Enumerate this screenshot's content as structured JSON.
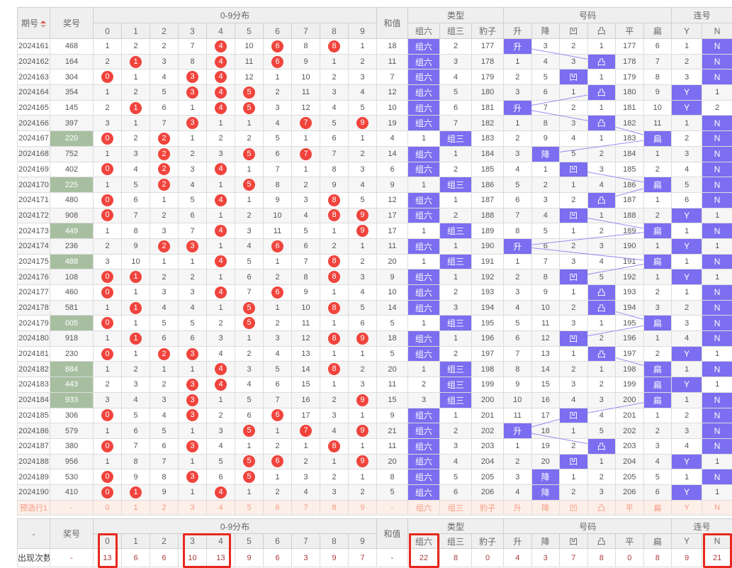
{
  "header": {
    "col_period": "期号",
    "col_prize": "奖号",
    "group_dist": "0-9分布",
    "dist_cols": [
      "0",
      "1",
      "2",
      "3",
      "4",
      "5",
      "6",
      "7",
      "8",
      "9"
    ],
    "col_sum": "和值",
    "group_type": "类型",
    "type_cols": [
      "组六",
      "组三",
      "豹子"
    ],
    "group_num": "号码",
    "num_cols": [
      "升",
      "降",
      "凹",
      "凸",
      "平",
      "扁"
    ],
    "group_lian": "连号",
    "lian_cols": [
      "Y",
      "N"
    ]
  },
  "colors": {
    "highlight_purple": "#7b6ef0",
    "hit_circle_red": "#f0443d",
    "group3_prize_green": "#a7bfa0",
    "preselect_text": "#f49a82",
    "preselect_bg": "#fcefe8",
    "annotation_red": "#e8281e",
    "count_text": "#a93b3b",
    "connector_line": "#978cf0"
  },
  "rows": [
    {
      "period": "2024161",
      "prize": "468",
      "green": false,
      "dist": [
        "1",
        "2",
        "2",
        "7",
        "4",
        "10",
        "6",
        "8",
        "8",
        "1"
      ],
      "circled": [
        4,
        6,
        8
      ],
      "sum": "18",
      "types": [
        "组六",
        "2",
        "177"
      ],
      "type_hl": 0,
      "nums": [
        "升",
        "3",
        "2",
        "1",
        "177",
        "6"
      ],
      "num_hl": 0,
      "lian": [
        "1",
        "N"
      ],
      "lian_hl": 1
    },
    {
      "period": "2024162",
      "prize": "164",
      "green": false,
      "dist": [
        "2",
        "1",
        "3",
        "8",
        "4",
        "11",
        "6",
        "9",
        "1",
        "2"
      ],
      "circled": [
        1,
        4,
        6
      ],
      "sum": "11",
      "types": [
        "组六",
        "3",
        "178"
      ],
      "type_hl": 0,
      "nums": [
        "1",
        "4",
        "3",
        "凸",
        "178",
        "7"
      ],
      "num_hl": 3,
      "lian": [
        "2",
        "N"
      ],
      "lian_hl": 1
    },
    {
      "period": "2024163",
      "prize": "304",
      "green": false,
      "dist": [
        "0",
        "1",
        "4",
        "3",
        "4",
        "12",
        "1",
        "10",
        "2",
        "3"
      ],
      "circled": [
        0,
        3,
        4
      ],
      "sum": "7",
      "types": [
        "组六",
        "4",
        "179"
      ],
      "type_hl": 0,
      "nums": [
        "2",
        "5",
        "凹",
        "1",
        "179",
        "8"
      ],
      "num_hl": 2,
      "lian": [
        "3",
        "N"
      ],
      "lian_hl": 1
    },
    {
      "period": "2024164",
      "prize": "354",
      "green": false,
      "dist": [
        "1",
        "2",
        "5",
        "3",
        "4",
        "5",
        "2",
        "11",
        "3",
        "4"
      ],
      "circled": [
        3,
        4,
        5
      ],
      "sum": "12",
      "types": [
        "组六",
        "5",
        "180"
      ],
      "type_hl": 0,
      "nums": [
        "3",
        "6",
        "1",
        "凸",
        "180",
        "9"
      ],
      "num_hl": 3,
      "lian": [
        "Y",
        "1"
      ],
      "lian_hl": 0
    },
    {
      "period": "2024165",
      "prize": "145",
      "green": false,
      "dist": [
        "2",
        "1",
        "6",
        "1",
        "4",
        "5",
        "3",
        "12",
        "4",
        "5"
      ],
      "circled": [
        1,
        4,
        5
      ],
      "sum": "10",
      "types": [
        "组六",
        "6",
        "181"
      ],
      "type_hl": 0,
      "nums": [
        "升",
        "7",
        "2",
        "1",
        "181",
        "10"
      ],
      "num_hl": 0,
      "lian": [
        "Y",
        "2"
      ],
      "lian_hl": 0
    },
    {
      "period": "2024166",
      "prize": "397",
      "green": false,
      "dist": [
        "3",
        "1",
        "7",
        "3",
        "1",
        "1",
        "4",
        "7",
        "5",
        "9"
      ],
      "circled": [
        3,
        7,
        9
      ],
      "sum": "19",
      "types": [
        "组六",
        "7",
        "182"
      ],
      "type_hl": 0,
      "nums": [
        "1",
        "8",
        "3",
        "凸",
        "182",
        "11"
      ],
      "num_hl": 3,
      "lian": [
        "1",
        "N"
      ],
      "lian_hl": 1
    },
    {
      "period": "2024167",
      "prize": "220",
      "green": true,
      "dist": [
        "0",
        "2",
        "2",
        "1",
        "2",
        "2",
        "5",
        "1",
        "6",
        "1"
      ],
      "circled": [
        0,
        2
      ],
      "sum": "4",
      "types": [
        "1",
        "组三",
        "183"
      ],
      "type_hl": 1,
      "nums": [
        "2",
        "9",
        "4",
        "1",
        "183",
        "扁"
      ],
      "num_hl": 5,
      "lian": [
        "2",
        "N"
      ],
      "lian_hl": 1
    },
    {
      "period": "2024168",
      "prize": "752",
      "green": false,
      "dist": [
        "1",
        "3",
        "2",
        "2",
        "3",
        "5",
        "6",
        "7",
        "7",
        "2"
      ],
      "circled": [
        2,
        5,
        7
      ],
      "sum": "14",
      "types": [
        "组六",
        "1",
        "184"
      ],
      "type_hl": 0,
      "nums": [
        "3",
        "降",
        "5",
        "2",
        "184",
        "1"
      ],
      "num_hl": 1,
      "lian": [
        "3",
        "N"
      ],
      "lian_hl": 1
    },
    {
      "period": "2024169",
      "prize": "402",
      "green": false,
      "dist": [
        "0",
        "4",
        "2",
        "3",
        "4",
        "1",
        "7",
        "1",
        "8",
        "3"
      ],
      "circled": [
        0,
        2,
        4
      ],
      "sum": "6",
      "types": [
        "组六",
        "2",
        "185"
      ],
      "type_hl": 0,
      "nums": [
        "4",
        "1",
        "凹",
        "3",
        "185",
        "2"
      ],
      "num_hl": 2,
      "lian": [
        "4",
        "N"
      ],
      "lian_hl": 1
    },
    {
      "period": "2024170",
      "prize": "225",
      "green": true,
      "dist": [
        "1",
        "5",
        "2",
        "4",
        "1",
        "5",
        "8",
        "2",
        "9",
        "4"
      ],
      "circled": [
        2,
        5
      ],
      "sum": "9",
      "types": [
        "1",
        "组三",
        "186"
      ],
      "type_hl": 1,
      "nums": [
        "5",
        "2",
        "1",
        "4",
        "186",
        "扁"
      ],
      "num_hl": 5,
      "lian": [
        "5",
        "N"
      ],
      "lian_hl": 1
    },
    {
      "period": "2024171",
      "prize": "480",
      "green": false,
      "dist": [
        "0",
        "6",
        "1",
        "5",
        "4",
        "1",
        "9",
        "3",
        "8",
        "5"
      ],
      "circled": [
        0,
        4,
        8
      ],
      "sum": "12",
      "types": [
        "组六",
        "1",
        "187"
      ],
      "type_hl": 0,
      "nums": [
        "6",
        "3",
        "2",
        "凸",
        "187",
        "1"
      ],
      "num_hl": 3,
      "lian": [
        "6",
        "N"
      ],
      "lian_hl": 1
    },
    {
      "period": "2024172",
      "prize": "908",
      "green": false,
      "dist": [
        "0",
        "7",
        "2",
        "6",
        "1",
        "2",
        "10",
        "4",
        "8",
        "9"
      ],
      "circled": [
        0,
        8,
        9
      ],
      "sum": "17",
      "types": [
        "组六",
        "2",
        "188"
      ],
      "type_hl": 0,
      "nums": [
        "7",
        "4",
        "凹",
        "1",
        "188",
        "2"
      ],
      "num_hl": 2,
      "lian": [
        "Y",
        "1"
      ],
      "lian_hl": 0
    },
    {
      "period": "2024173",
      "prize": "449",
      "green": true,
      "dist": [
        "1",
        "8",
        "3",
        "7",
        "4",
        "3",
        "11",
        "5",
        "1",
        "9"
      ],
      "circled": [
        4,
        9
      ],
      "sum": "17",
      "types": [
        "1",
        "组三",
        "189"
      ],
      "type_hl": 1,
      "nums": [
        "8",
        "5",
        "1",
        "2",
        "189",
        "扁"
      ],
      "num_hl": 5,
      "lian": [
        "1",
        "N"
      ],
      "lian_hl": 1
    },
    {
      "period": "2024174",
      "prize": "236",
      "green": false,
      "dist": [
        "2",
        "9",
        "2",
        "3",
        "1",
        "4",
        "6",
        "6",
        "2",
        "1"
      ],
      "circled": [
        2,
        3,
        6
      ],
      "sum": "11",
      "types": [
        "组六",
        "1",
        "190"
      ],
      "type_hl": 0,
      "nums": [
        "升",
        "6",
        "2",
        "3",
        "190",
        "1"
      ],
      "num_hl": 0,
      "lian": [
        "Y",
        "1"
      ],
      "lian_hl": 0
    },
    {
      "period": "2024175",
      "prize": "488",
      "green": true,
      "dist": [
        "3",
        "10",
        "1",
        "1",
        "4",
        "5",
        "1",
        "7",
        "8",
        "2"
      ],
      "circled": [
        4,
        8
      ],
      "sum": "20",
      "types": [
        "1",
        "组三",
        "191"
      ],
      "type_hl": 1,
      "nums": [
        "1",
        "7",
        "3",
        "4",
        "191",
        "扁"
      ],
      "num_hl": 5,
      "lian": [
        "1",
        "N"
      ],
      "lian_hl": 1
    },
    {
      "period": "2024176",
      "prize": "108",
      "green": false,
      "dist": [
        "0",
        "1",
        "2",
        "2",
        "1",
        "6",
        "2",
        "8",
        "8",
        "3"
      ],
      "circled": [
        0,
        1,
        8
      ],
      "sum": "9",
      "types": [
        "组六",
        "1",
        "192"
      ],
      "type_hl": 0,
      "nums": [
        "2",
        "8",
        "凹",
        "5",
        "192",
        "1"
      ],
      "num_hl": 2,
      "lian": [
        "Y",
        "1"
      ],
      "lian_hl": 0
    },
    {
      "period": "2024177",
      "prize": "460",
      "green": false,
      "dist": [
        "0",
        "1",
        "3",
        "3",
        "4",
        "7",
        "6",
        "9",
        "1",
        "4"
      ],
      "circled": [
        0,
        4,
        6
      ],
      "sum": "10",
      "types": [
        "组六",
        "2",
        "193"
      ],
      "type_hl": 0,
      "nums": [
        "3",
        "9",
        "1",
        "凸",
        "193",
        "2"
      ],
      "num_hl": 3,
      "lian": [
        "1",
        "N"
      ],
      "lian_hl": 1
    },
    {
      "period": "2024178",
      "prize": "581",
      "green": false,
      "dist": [
        "1",
        "1",
        "4",
        "4",
        "1",
        "5",
        "1",
        "10",
        "8",
        "5"
      ],
      "circled": [
        1,
        5,
        8
      ],
      "sum": "14",
      "types": [
        "组六",
        "3",
        "194"
      ],
      "type_hl": 0,
      "nums": [
        "4",
        "10",
        "2",
        "凸",
        "194",
        "3"
      ],
      "num_hl": 3,
      "lian": [
        "2",
        "N"
      ],
      "lian_hl": 1
    },
    {
      "period": "2024179",
      "prize": "005",
      "green": true,
      "dist": [
        "0",
        "1",
        "5",
        "5",
        "2",
        "5",
        "2",
        "11",
        "1",
        "6"
      ],
      "circled": [
        0,
        5
      ],
      "sum": "5",
      "types": [
        "1",
        "组三",
        "195"
      ],
      "type_hl": 1,
      "nums": [
        "5",
        "11",
        "3",
        "1",
        "195",
        "扁"
      ],
      "num_hl": 5,
      "lian": [
        "3",
        "N"
      ],
      "lian_hl": 1
    },
    {
      "period": "2024180",
      "prize": "918",
      "green": false,
      "dist": [
        "1",
        "1",
        "6",
        "6",
        "3",
        "1",
        "3",
        "12",
        "8",
        "9"
      ],
      "circled": [
        1,
        8,
        9
      ],
      "sum": "18",
      "types": [
        "组六",
        "1",
        "196"
      ],
      "type_hl": 0,
      "nums": [
        "6",
        "12",
        "凹",
        "2",
        "196",
        "1"
      ],
      "num_hl": 2,
      "lian": [
        "4",
        "N"
      ],
      "lian_hl": 1
    },
    {
      "period": "2024181",
      "prize": "230",
      "green": false,
      "dist": [
        "0",
        "1",
        "2",
        "3",
        "4",
        "2",
        "4",
        "13",
        "1",
        "1"
      ],
      "circled": [
        0,
        2,
        3
      ],
      "sum": "5",
      "types": [
        "组六",
        "2",
        "197"
      ],
      "type_hl": 0,
      "nums": [
        "7",
        "13",
        "1",
        "凸",
        "197",
        "2"
      ],
      "num_hl": 3,
      "lian": [
        "Y",
        "1"
      ],
      "lian_hl": 0
    },
    {
      "period": "2024182",
      "prize": "884",
      "green": true,
      "dist": [
        "1",
        "2",
        "1",
        "1",
        "4",
        "3",
        "5",
        "14",
        "8",
        "2"
      ],
      "circled": [
        4,
        8
      ],
      "sum": "20",
      "types": [
        "1",
        "组三",
        "198"
      ],
      "type_hl": 1,
      "nums": [
        "8",
        "14",
        "2",
        "1",
        "198",
        "扁"
      ],
      "num_hl": 5,
      "lian": [
        "1",
        "N"
      ],
      "lian_hl": 1
    },
    {
      "period": "2024183",
      "prize": "443",
      "green": true,
      "dist": [
        "2",
        "3",
        "2",
        "3",
        "4",
        "4",
        "6",
        "15",
        "1",
        "3"
      ],
      "circled": [
        3,
        4
      ],
      "sum": "11",
      "types": [
        "2",
        "组三",
        "199"
      ],
      "type_hl": 1,
      "nums": [
        "9",
        "15",
        "3",
        "2",
        "199",
        "扁"
      ],
      "num_hl": 5,
      "lian": [
        "Y",
        "1"
      ],
      "lian_hl": 0
    },
    {
      "period": "2024184",
      "prize": "933",
      "green": true,
      "dist": [
        "3",
        "4",
        "3",
        "3",
        "1",
        "5",
        "7",
        "16",
        "2",
        "9"
      ],
      "circled": [
        3,
        9
      ],
      "sum": "15",
      "types": [
        "3",
        "组三",
        "200"
      ],
      "type_hl": 1,
      "nums": [
        "10",
        "16",
        "4",
        "3",
        "200",
        "扁"
      ],
      "num_hl": 5,
      "lian": [
        "1",
        "N"
      ],
      "lian_hl": 1
    },
    {
      "period": "2024185",
      "prize": "306",
      "green": false,
      "dist": [
        "0",
        "5",
        "4",
        "3",
        "2",
        "6",
        "6",
        "17",
        "3",
        "1"
      ],
      "circled": [
        0,
        3,
        6
      ],
      "sum": "9",
      "types": [
        "组六",
        "1",
        "201"
      ],
      "type_hl": 0,
      "nums": [
        "11",
        "17",
        "凹",
        "4",
        "201",
        "1"
      ],
      "num_hl": 2,
      "lian": [
        "2",
        "N"
      ],
      "lian_hl": 1
    },
    {
      "period": "2024186",
      "prize": "579",
      "green": false,
      "dist": [
        "1",
        "6",
        "5",
        "1",
        "3",
        "5",
        "1",
        "7",
        "4",
        "9"
      ],
      "circled": [
        5,
        7,
        9
      ],
      "sum": "21",
      "types": [
        "组六",
        "2",
        "202"
      ],
      "type_hl": 0,
      "nums": [
        "升",
        "18",
        "1",
        "5",
        "202",
        "2"
      ],
      "num_hl": 0,
      "lian": [
        "3",
        "N"
      ],
      "lian_hl": 1
    },
    {
      "period": "2024187",
      "prize": "380",
      "green": false,
      "dist": [
        "0",
        "7",
        "6",
        "3",
        "4",
        "1",
        "2",
        "1",
        "8",
        "1"
      ],
      "circled": [
        0,
        3,
        8
      ],
      "sum": "11",
      "types": [
        "组六",
        "3",
        "203"
      ],
      "type_hl": 0,
      "nums": [
        "1",
        "19",
        "2",
        "凸",
        "203",
        "3"
      ],
      "num_hl": 3,
      "lian": [
        "4",
        "N"
      ],
      "lian_hl": 1
    },
    {
      "period": "2024188",
      "prize": "956",
      "green": false,
      "dist": [
        "1",
        "8",
        "7",
        "1",
        "5",
        "5",
        "6",
        "2",
        "1",
        "9"
      ],
      "circled": [
        5,
        6,
        9
      ],
      "sum": "20",
      "types": [
        "组六",
        "4",
        "204"
      ],
      "type_hl": 0,
      "nums": [
        "2",
        "20",
        "凹",
        "1",
        "204",
        "4"
      ],
      "num_hl": 2,
      "lian": [
        "Y",
        "1"
      ],
      "lian_hl": 0
    },
    {
      "period": "2024189",
      "prize": "530",
      "green": false,
      "dist": [
        "0",
        "9",
        "8",
        "3",
        "6",
        "5",
        "1",
        "3",
        "2",
        "1"
      ],
      "circled": [
        0,
        3,
        5
      ],
      "sum": "8",
      "types": [
        "组六",
        "5",
        "205"
      ],
      "type_hl": 0,
      "nums": [
        "3",
        "降",
        "1",
        "2",
        "205",
        "5"
      ],
      "num_hl": 1,
      "lian": [
        "1",
        "N"
      ],
      "lian_hl": 1
    },
    {
      "period": "2024190",
      "prize": "410",
      "green": false,
      "dist": [
        "0",
        "1",
        "9",
        "1",
        "4",
        "1",
        "2",
        "4",
        "3",
        "2"
      ],
      "circled": [
        0,
        1,
        4
      ],
      "sum": "5",
      "types": [
        "组六",
        "6",
        "206"
      ],
      "type_hl": 0,
      "nums": [
        "4",
        "降",
        "2",
        "3",
        "206",
        "6"
      ],
      "num_hl": 1,
      "lian": [
        "Y",
        "1"
      ],
      "lian_hl": 0
    }
  ],
  "preselect": {
    "label": "预选行1",
    "prize": "-",
    "dist": [
      "0",
      "1",
      "2",
      "3",
      "4",
      "5",
      "6",
      "7",
      "8",
      "9"
    ],
    "sum": "-",
    "types": [
      "组六",
      "组三",
      "豹子"
    ],
    "nums": [
      "升",
      "降",
      "凹",
      "凸",
      "平",
      "扁"
    ],
    "lian": [
      "Y",
      "N"
    ]
  },
  "footer": {
    "dash": "-",
    "count": {
      "label": "出现次数",
      "prize": "-",
      "dist": [
        "13",
        "6",
        "6",
        "10",
        "13",
        "9",
        "6",
        "3",
        "9",
        "7"
      ],
      "sum": "-",
      "types": [
        "22",
        "8",
        "0"
      ],
      "nums": [
        "4",
        "3",
        "7",
        "8",
        "0",
        "8"
      ],
      "lian": [
        "9",
        "21"
      ]
    }
  },
  "annotations": {
    "boxes": [
      [
        "d0"
      ],
      [
        "d3",
        "d4"
      ],
      [
        "t0"
      ],
      [
        "l1"
      ]
    ]
  }
}
